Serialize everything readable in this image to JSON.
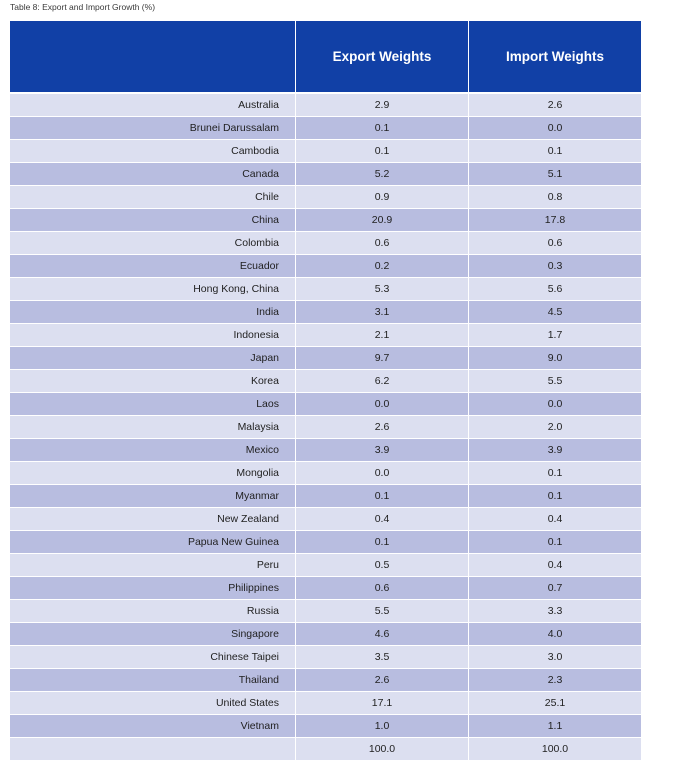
{
  "caption": "Table 8:  Export and Import Growth (%)",
  "headers": {
    "col0": "",
    "export": "Export Weights",
    "import": "Import Weights"
  },
  "rows": [
    {
      "country": "Australia",
      "export": "2.9",
      "import": "2.6"
    },
    {
      "country": "Brunei Darussalam",
      "export": "0.1",
      "import": "0.0"
    },
    {
      "country": "Cambodia",
      "export": "0.1",
      "import": "0.1"
    },
    {
      "country": "Canada",
      "export": "5.2",
      "import": "5.1"
    },
    {
      "country": "Chile",
      "export": "0.9",
      "import": "0.8"
    },
    {
      "country": "China",
      "export": "20.9",
      "import": "17.8"
    },
    {
      "country": "Colombia",
      "export": "0.6",
      "import": "0.6"
    },
    {
      "country": "Ecuador",
      "export": "0.2",
      "import": "0.3"
    },
    {
      "country": "Hong Kong, China",
      "export": "5.3",
      "import": "5.6"
    },
    {
      "country": "India",
      "export": "3.1",
      "import": "4.5"
    },
    {
      "country": "Indonesia",
      "export": "2.1",
      "import": "1.7"
    },
    {
      "country": "Japan",
      "export": "9.7",
      "import": "9.0"
    },
    {
      "country": "Korea",
      "export": "6.2",
      "import": "5.5"
    },
    {
      "country": "Laos",
      "export": "0.0",
      "import": "0.0"
    },
    {
      "country": "Malaysia",
      "export": "2.6",
      "import": "2.0"
    },
    {
      "country": "Mexico",
      "export": "3.9",
      "import": "3.9"
    },
    {
      "country": "Mongolia",
      "export": "0.0",
      "import": "0.1"
    },
    {
      "country": "Myanmar",
      "export": "0.1",
      "import": "0.1"
    },
    {
      "country": "New Zealand",
      "export": "0.4",
      "import": "0.4"
    },
    {
      "country": "Papua New Guinea",
      "export": "0.1",
      "import": "0.1"
    },
    {
      "country": "Peru",
      "export": "0.5",
      "import": "0.4"
    },
    {
      "country": "Philippines",
      "export": "0.6",
      "import": "0.7"
    },
    {
      "country": "Russia",
      "export": "5.5",
      "import": "3.3"
    },
    {
      "country": "Singapore",
      "export": "4.6",
      "import": "4.0"
    },
    {
      "country": "Chinese Taipei",
      "export": "3.5",
      "import": "3.0"
    },
    {
      "country": "Thailand",
      "export": "2.6",
      "import": "2.3"
    },
    {
      "country": "United States",
      "export": "17.1",
      "import": "25.1"
    },
    {
      "country": "Vietnam",
      "export": "1.0",
      "import": "1.1"
    },
    {
      "country": "",
      "export": "100.0",
      "import": "100.0"
    }
  ],
  "colors": {
    "header_bg": "#1140a6",
    "row_light": "#dcdff0",
    "row_dark": "#b8bde0"
  }
}
